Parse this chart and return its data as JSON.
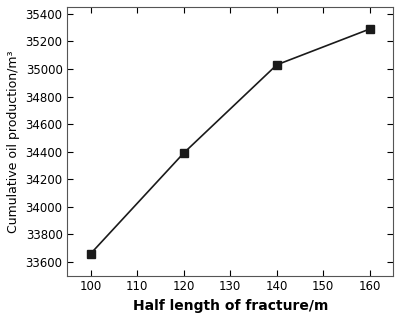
{
  "x": [
    100,
    120,
    140,
    160
  ],
  "y": [
    33660,
    34390,
    35030,
    35290
  ],
  "xlabel": "Half length of fracture/m",
  "ylabel": "Cumulative oil production/m³",
  "xlim": [
    95,
    165
  ],
  "ylim": [
    33500,
    35450
  ],
  "xticks": [
    100,
    110,
    120,
    130,
    140,
    150,
    160
  ],
  "yticks": [
    33600,
    33800,
    34000,
    34200,
    34400,
    34600,
    34800,
    35000,
    35200,
    35400
  ],
  "line_color": "#1a1a1a",
  "marker": "s",
  "marker_color": "#1a1a1a",
  "marker_size": 6,
  "linewidth": 1.2,
  "xlabel_fontsize": 10,
  "ylabel_fontsize": 9,
  "tick_fontsize": 8.5,
  "background_color": "#ffffff"
}
